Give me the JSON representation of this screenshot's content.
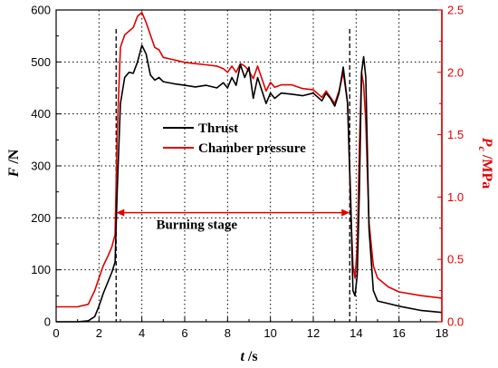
{
  "chart_data": {
    "type": "line",
    "xlabel": {
      "italic": "t",
      "unit": " /s"
    },
    "ylabel_left": {
      "italic": "F",
      "unit": " /N"
    },
    "ylabel_right": {
      "italic": "P",
      "sub": "c",
      "unit": " /MPa"
    },
    "xlim": [
      0,
      18
    ],
    "ylim_left": [
      0,
      600
    ],
    "ylim_right": [
      0,
      2.5
    ],
    "x_ticks": [
      "0",
      "2",
      "4",
      "6",
      "8",
      "10",
      "12",
      "14",
      "16",
      "18"
    ],
    "y_left_ticks": [
      "0",
      "100",
      "200",
      "300",
      "400",
      "500",
      "600"
    ],
    "y_right_ticks": [
      "0.0",
      "0.5",
      "1.0",
      "1.5",
      "2.0",
      "2.5"
    ],
    "grid": "dotted",
    "colors": {
      "thrust": "#000000",
      "pressure": "#e00000",
      "right_axis": "#e00000"
    },
    "legend": [
      {
        "name": "Thrust",
        "color": "#000000"
      },
      {
        "name": "Chamber pressure",
        "color": "#e00000"
      }
    ],
    "legend_position": "center-left",
    "annotation": {
      "text": "Burning stage",
      "x_start": 2.8,
      "x_end": 13.7,
      "y_value": 210
    },
    "vlines_x": [
      2.8,
      13.7
    ],
    "series": [
      {
        "name": "Thrust",
        "axis": "left",
        "x": [
          0,
          1.0,
          1.5,
          1.8,
          2.0,
          2.2,
          2.4,
          2.6,
          2.75,
          2.85,
          3.0,
          3.2,
          3.4,
          3.6,
          3.8,
          4.0,
          4.2,
          4.4,
          4.6,
          4.8,
          5.0,
          5.5,
          6.0,
          6.5,
          7.0,
          7.5,
          7.8,
          8.0,
          8.2,
          8.4,
          8.6,
          8.8,
          9.0,
          9.2,
          9.4,
          9.6,
          9.8,
          10.0,
          10.2,
          10.5,
          11.0,
          11.5,
          12.0,
          12.4,
          12.6,
          12.8,
          13.0,
          13.2,
          13.4,
          13.6,
          13.75,
          13.85,
          13.95,
          14.05,
          14.15,
          14.25,
          14.35,
          14.45,
          14.6,
          14.8,
          15.0,
          15.5,
          16.0,
          17.0,
          18.0
        ],
        "values": [
          0,
          0,
          2,
          10,
          30,
          55,
          75,
          95,
          115,
          250,
          420,
          470,
          480,
          478,
          500,
          532,
          515,
          475,
          465,
          470,
          462,
          458,
          455,
          452,
          455,
          450,
          460,
          450,
          470,
          455,
          495,
          470,
          490,
          430,
          470,
          445,
          420,
          440,
          430,
          440,
          438,
          435,
          440,
          425,
          440,
          430,
          415,
          440,
          490,
          420,
          230,
          60,
          50,
          90,
          250,
          480,
          510,
          470,
          180,
          60,
          40,
          35,
          30,
          22,
          18
        ]
      },
      {
        "name": "Chamber pressure",
        "axis": "right",
        "x": [
          0,
          1.0,
          1.5,
          1.8,
          2.0,
          2.2,
          2.4,
          2.6,
          2.75,
          2.85,
          3.0,
          3.2,
          3.4,
          3.6,
          3.8,
          4.0,
          4.2,
          4.4,
          4.6,
          4.8,
          5.0,
          5.5,
          6.0,
          6.5,
          7.0,
          7.5,
          7.8,
          8.0,
          8.2,
          8.4,
          8.6,
          8.8,
          9.0,
          9.2,
          9.4,
          9.6,
          9.8,
          10.0,
          10.2,
          10.5,
          11.0,
          11.5,
          12.0,
          12.4,
          12.6,
          12.8,
          13.0,
          13.2,
          13.4,
          13.6,
          13.75,
          13.85,
          13.95,
          14.05,
          14.15,
          14.25,
          14.35,
          14.45,
          14.6,
          14.8,
          15.0,
          15.5,
          16.0,
          17.0,
          18.0
        ],
        "values": [
          0.12,
          0.12,
          0.14,
          0.25,
          0.35,
          0.45,
          0.52,
          0.6,
          0.7,
          1.5,
          2.2,
          2.3,
          2.33,
          2.36,
          2.45,
          2.48,
          2.4,
          2.3,
          2.2,
          2.18,
          2.12,
          2.1,
          2.08,
          2.07,
          2.06,
          2.05,
          2.03,
          2.0,
          2.05,
          2.0,
          2.07,
          2.05,
          2.01,
          1.95,
          2.05,
          1.95,
          1.85,
          1.92,
          1.88,
          1.9,
          1.9,
          1.87,
          1.86,
          1.8,
          1.85,
          1.8,
          1.75,
          1.85,
          2.0,
          1.75,
          0.9,
          0.45,
          0.35,
          0.6,
          1.4,
          2.0,
          1.9,
          1.6,
          0.8,
          0.45,
          0.35,
          0.28,
          0.24,
          0.21,
          0.19
        ]
      }
    ]
  }
}
